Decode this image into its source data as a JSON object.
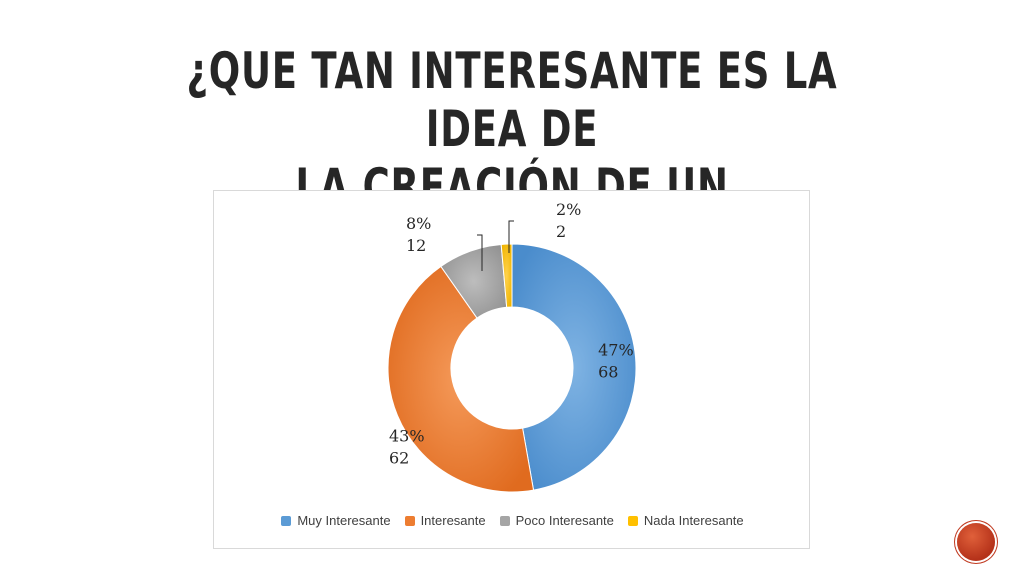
{
  "slide": {
    "title_line1": "¿QUE TAN INTERESANTE ES LA IDEA DE",
    "title_line2": "LA CREACIÓN DE UN PROGRAMA RADIAL?"
  },
  "chart_data": {
    "type": "pie",
    "title": "",
    "categories": [
      "Muy Interesante",
      "Interesante",
      "Poco Interesante",
      "Nada Interesante"
    ],
    "values": [
      68,
      62,
      12,
      2
    ],
    "percent_labels": [
      "47%",
      "43%",
      "8%",
      "2%"
    ],
    "colors": [
      "#5b9bd5",
      "#ed7d31",
      "#a5a5a5",
      "#ffc000"
    ],
    "donut": true,
    "legend_position": "bottom"
  }
}
